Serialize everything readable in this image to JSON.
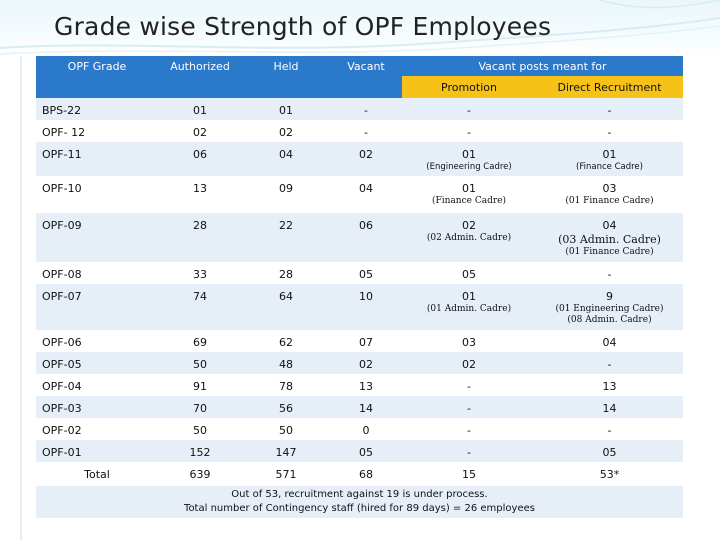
{
  "title": "Grade wise Strength of OPF Employees",
  "colors": {
    "header_blue": "#2b79ca",
    "sub_header_yellow": "#f7c217",
    "band": "#e6eff8"
  },
  "table": {
    "headers": {
      "grade": "OPF Grade",
      "authorized": "Authorized",
      "held": "Held",
      "vacant": "Vacant",
      "vacant_for": "Vacant posts meant for",
      "promotion": "Promotion",
      "direct": "Direct Recruitment"
    },
    "rows": [
      {
        "grade": "BPS-22",
        "authorized": "01",
        "held": "01",
        "vacant": "-",
        "promotion": "-",
        "direct": "-"
      },
      {
        "grade": "OPF- 12",
        "authorized": "02",
        "held": "02",
        "vacant": "-",
        "promotion": "-",
        "direct": "-"
      },
      {
        "grade": "OPF-11",
        "authorized": "06",
        "held": "04",
        "vacant": "02",
        "promotion": "01",
        "promotion_note": "(Engineering Cadre)",
        "direct": "01",
        "direct_note": "(Finance Cadre)"
      },
      {
        "grade": "OPF-10",
        "authorized": "13",
        "held": "09",
        "vacant": "04",
        "promotion": "01",
        "promotion_note": "(Finance Cadre)",
        "direct": "03",
        "direct_note": "(01 Finance Cadre)"
      },
      {
        "grade": "OPF-09",
        "authorized": "28",
        "held": "22",
        "vacant": "06",
        "promotion": "02",
        "promotion_note": "(02 Admin. Cadre)",
        "direct": "04",
        "direct_note": "(03 Admin. Cadre)",
        "direct_note2": "(01 Finance Cadre)"
      },
      {
        "grade": "OPF-08",
        "authorized": "33",
        "held": "28",
        "vacant": "05",
        "promotion": "05",
        "direct": "-"
      },
      {
        "grade": "OPF-07",
        "authorized": "74",
        "held": "64",
        "vacant": "10",
        "promotion": "01",
        "promotion_note": "(01 Admin. Cadre)",
        "direct": "9",
        "direct_note": "(01 Engineering Cadre)",
        "direct_note2": "(08 Admin. Cadre)"
      },
      {
        "grade": "OPF-06",
        "authorized": "69",
        "held": "62",
        "vacant": "07",
        "promotion": "03",
        "direct": "04"
      },
      {
        "grade": "OPF-05",
        "authorized": "50",
        "held": "48",
        "vacant": "02",
        "promotion": "02",
        "direct": "-"
      },
      {
        "grade": "OPF-04",
        "authorized": "91",
        "held": "78",
        "vacant": "13",
        "promotion": "-",
        "direct": "13"
      },
      {
        "grade": "OPF-03",
        "authorized": "70",
        "held": "56",
        "vacant": "14",
        "promotion": "-",
        "direct": "14"
      },
      {
        "grade": "OPF-02",
        "authorized": "50",
        "held": "50",
        "vacant": "0",
        "promotion": "-",
        "direct": "-"
      },
      {
        "grade": "OPF-01",
        "authorized": "152",
        "held": "147",
        "vacant": "05",
        "promotion": "-",
        "direct": "05"
      }
    ],
    "total": {
      "grade": "Total",
      "authorized": "639",
      "held": "571",
      "vacant": "68",
      "promotion": "15",
      "direct": "53*"
    },
    "footer": {
      "line1": "Out of 53, recruitment against 19 is under process.",
      "line2": "Total number of Contingency staff (hired for 89 days) = 26 employees"
    }
  }
}
